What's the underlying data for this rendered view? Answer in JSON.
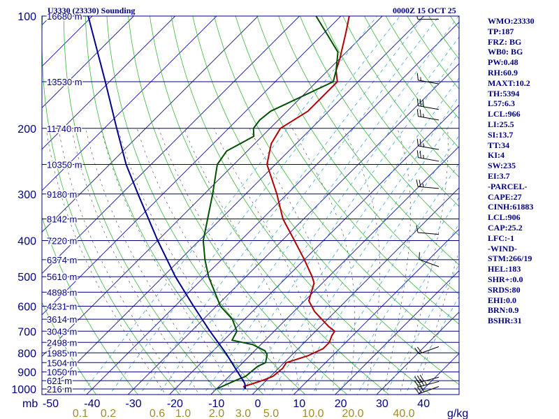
{
  "chart_data": {
    "type": "line",
    "title": "U3330 (23330) Sounding",
    "valid_time": "0000Z 15 OCT 25",
    "pressure_unit_label": "mb",
    "mixing_ratio_unit_label": "g/kg",
    "pressure_ticks": [
      {
        "p": 100,
        "label": "100"
      },
      {
        "p": 200,
        "label": "200"
      },
      {
        "p": 300,
        "label": "300"
      },
      {
        "p": 400,
        "label": "400"
      },
      {
        "p": 500,
        "label": "500"
      },
      {
        "p": 600,
        "label": "600"
      },
      {
        "p": 700,
        "label": "700"
      },
      {
        "p": 800,
        "label": "800"
      },
      {
        "p": 900,
        "label": "900"
      },
      {
        "p": 1000,
        "label": "1000"
      }
    ],
    "temperature_ticks": [
      {
        "t": -50,
        "label": "-50"
      },
      {
        "t": -40,
        "label": "-40"
      },
      {
        "t": -30,
        "label": "-30"
      },
      {
        "t": -20,
        "label": "-20"
      },
      {
        "t": -10,
        "label": "-10"
      },
      {
        "t": 0,
        "label": "0"
      },
      {
        "t": 10,
        "label": "10"
      },
      {
        "t": 20,
        "label": "20"
      },
      {
        "t": 30,
        "label": "30"
      },
      {
        "t": 40,
        "label": "40"
      }
    ],
    "mixing_ratio_labels": [
      {
        "w": 0.1,
        "label": "0.1"
      },
      {
        "w": 0.2,
        "label": "0.2"
      },
      {
        "w": 0.6,
        "label": "0.6"
      },
      {
        "w": 1.0,
        "label": "1.0"
      },
      {
        "w": 2.0,
        "label": "2.0"
      },
      {
        "w": 3.0,
        "label": "3.0"
      },
      {
        "w": 5.0,
        "label": "5.0"
      },
      {
        "w": 10.0,
        "label": "10.0"
      },
      {
        "w": 20.0,
        "label": "20.0"
      },
      {
        "w": 40.0,
        "label": "40.0"
      }
    ],
    "height_levels": [
      {
        "p": 100,
        "label": "16680 m"
      },
      {
        "p": 150,
        "label": "13530 m"
      },
      {
        "p": 200,
        "label": "11740 m"
      },
      {
        "p": 250,
        "label": "10350 m"
      },
      {
        "p": 300,
        "label": "9180 m"
      },
      {
        "p": 350,
        "label": "8142 m"
      },
      {
        "p": 400,
        "label": "7220 m"
      },
      {
        "p": 450,
        "label": "6374 m"
      },
      {
        "p": 500,
        "label": "5610 m"
      },
      {
        "p": 550,
        "label": "4898 m"
      },
      {
        "p": 600,
        "label": "4231 m"
      },
      {
        "p": 650,
        "label": "3614 m"
      },
      {
        "p": 700,
        "label": "3043 m"
      },
      {
        "p": 750,
        "label": "2498 m"
      },
      {
        "p": 800,
        "label": "1985 m"
      },
      {
        "p": 850,
        "label": "1504 m"
      },
      {
        "p": 900,
        "label": "1050 m"
      },
      {
        "p": 950,
        "label": "621 m"
      },
      {
        "p": 1000,
        "label": "216 m"
      }
    ],
    "series": [
      {
        "name": "Temperature",
        "color": "#b00000",
        "points": [
          {
            "p": 1000,
            "t": -3.0
          },
          {
            "p": 985,
            "t": -4.0
          },
          {
            "p": 950,
            "t": -1.0
          },
          {
            "p": 925,
            "t": 0.6
          },
          {
            "p": 880,
            "t": 1.0
          },
          {
            "p": 850,
            "t": 0.5
          },
          {
            "p": 815,
            "t": 4.0
          },
          {
            "p": 780,
            "t": 6.0
          },
          {
            "p": 750,
            "t": 6.0
          },
          {
            "p": 720,
            "t": 5.0
          },
          {
            "p": 700,
            "t": 4.6
          },
          {
            "p": 680,
            "t": 2.0
          },
          {
            "p": 620,
            "t": -5.0
          },
          {
            "p": 580,
            "t": -9.0
          },
          {
            "p": 520,
            "t": -12.0
          },
          {
            "p": 500,
            "t": -14.0
          },
          {
            "p": 450,
            "t": -20.0
          },
          {
            "p": 400,
            "t": -27.0
          },
          {
            "p": 350,
            "t": -35.0
          },
          {
            "p": 300,
            "t": -42.5
          },
          {
            "p": 250,
            "t": -52.0
          },
          {
            "p": 220,
            "t": -56.0
          },
          {
            "p": 200,
            "t": -57.5
          },
          {
            "p": 180,
            "t": -55.0
          },
          {
            "p": 150,
            "t": -55.0
          },
          {
            "p": 140,
            "t": -58.0
          },
          {
            "p": 130,
            "t": -60.0
          },
          {
            "p": 110,
            "t": -65.0
          },
          {
            "p": 100,
            "t": -68.0
          }
        ]
      },
      {
        "name": "Dew point",
        "color": "#005000",
        "points": [
          {
            "p": 1000,
            "t": -10.0
          },
          {
            "p": 950,
            "t": -7.5
          },
          {
            "p": 925,
            "t": -6.0
          },
          {
            "p": 870,
            "t": -5.5
          },
          {
            "p": 850,
            "t": -4.5
          },
          {
            "p": 810,
            "t": -6.0
          },
          {
            "p": 790,
            "t": -7.5
          },
          {
            "p": 760,
            "t": -12.0
          },
          {
            "p": 740,
            "t": -18.0
          },
          {
            "p": 700,
            "t": -19.0
          },
          {
            "p": 650,
            "t": -23.0
          },
          {
            "p": 600,
            "t": -29.0
          },
          {
            "p": 500,
            "t": -39.0
          },
          {
            "p": 450,
            "t": -44.0
          },
          {
            "p": 400,
            "t": -49.0
          },
          {
            "p": 300,
            "t": -58.0
          },
          {
            "p": 250,
            "t": -64.0
          },
          {
            "p": 230,
            "t": -65.0
          },
          {
            "p": 210,
            "t": -62.0
          },
          {
            "p": 200,
            "t": -64.0
          },
          {
            "p": 190,
            "t": -64.5
          },
          {
            "p": 180,
            "t": -64.0
          },
          {
            "p": 150,
            "t": -56.0
          },
          {
            "p": 140,
            "t": -58.0
          },
          {
            "p": 125,
            "t": -62.0
          },
          {
            "p": 110,
            "t": -70.0
          },
          {
            "p": 100,
            "t": -76.0
          }
        ]
      },
      {
        "name": "Parcel path",
        "color": "#00008c",
        "points": [
          {
            "p": 1000,
            "t": -3.0
          },
          {
            "p": 966,
            "t": -4.5
          },
          {
            "p": 900,
            "t": -9.0
          },
          {
            "p": 800,
            "t": -16.5
          },
          {
            "p": 700,
            "t": -25.5
          },
          {
            "p": 600,
            "t": -35.5
          },
          {
            "p": 500,
            "t": -47.0
          },
          {
            "p": 400,
            "t": -60.0
          },
          {
            "p": 300,
            "t": -76.0
          },
          {
            "p": 250,
            "t": -86.0
          },
          {
            "p": 200,
            "t": -97.0
          },
          {
            "p": 150,
            "t": -111.0
          },
          {
            "p": 100,
            "t": -131.0
          }
        ]
      }
    ],
    "wind_barbs": [
      {
        "p": 985,
        "dir": 250,
        "spd": 30
      },
      {
        "p": 955,
        "dir": 255,
        "spd": 35
      },
      {
        "p": 930,
        "dir": 255,
        "spd": 30
      },
      {
        "p": 770,
        "dir": 250,
        "spd": 20
      },
      {
        "p": 470,
        "dir": 290,
        "spd": 10
      },
      {
        "p": 385,
        "dir": 275,
        "spd": 10
      },
      {
        "p": 290,
        "dir": 275,
        "spd": 25
      },
      {
        "p": 245,
        "dir": 280,
        "spd": 25
      },
      {
        "p": 228,
        "dir": 280,
        "spd": 25
      },
      {
        "p": 190,
        "dir": 280,
        "spd": 25
      },
      {
        "p": 178,
        "dir": 280,
        "spd": 30
      },
      {
        "p": 152,
        "dir": 280,
        "spd": 15
      },
      {
        "p": 102,
        "dir": 270,
        "spd": 10
      }
    ],
    "indices": [
      "WMO:23330",
      "TP:187",
      "FRZ: BG",
      "WB0: BG",
      "PW:0.48",
      "RH:60.9",
      "MAXT:10.2",
      "TH:5394",
      "L57:6.3",
      "LCL:966",
      "LI:25.5",
      "SI:13.7",
      "TT:34",
      "KI:4",
      "SW:235",
      "EI:3.7",
      "-PARCEL-",
      "CAPE:27",
      "CINH:61883",
      "LCL:906",
      "CAP:25.2",
      "LFC:-1",
      "-WIND-",
      "STM:266/19",
      "HEL:183",
      "SHR+:0.0",
      "SRDS:80",
      "EHI:0.0",
      "BRN:0.9",
      "BSHR:31"
    ]
  }
}
